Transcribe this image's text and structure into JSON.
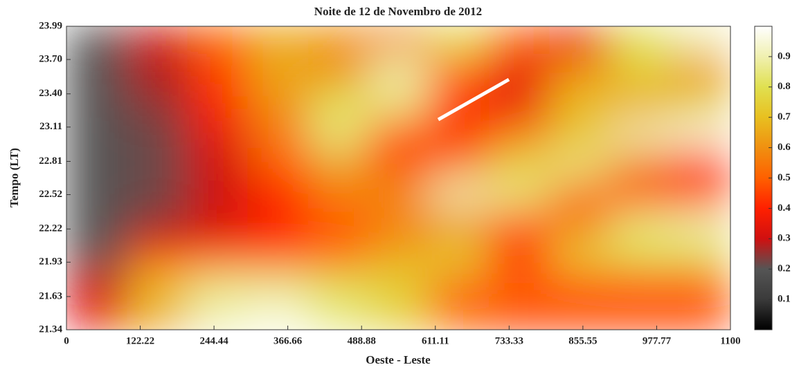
{
  "chart_data": {
    "type": "heatmap",
    "title": "Noite de 12 de Novembro de 2012",
    "x_label": "Oeste - Leste",
    "y_label": "Tempo (LT)",
    "x": [
      50,
      150,
      250,
      350,
      450,
      550,
      650,
      750,
      850,
      950,
      1050
    ],
    "y": [
      21.47,
      21.74,
      22.0,
      22.27,
      22.53,
      22.8,
      23.06,
      23.33,
      23.59,
      23.86
    ],
    "z": [
      [
        0.35,
        0.65,
        0.9,
        0.95,
        0.85,
        0.75,
        0.5,
        0.45,
        0.45,
        0.45,
        0.45
      ],
      [
        0.3,
        0.7,
        0.85,
        0.85,
        0.8,
        0.75,
        0.55,
        0.5,
        0.5,
        0.5,
        0.5
      ],
      [
        0.2,
        0.45,
        0.45,
        0.45,
        0.5,
        0.65,
        0.75,
        0.4,
        0.75,
        0.8,
        0.8
      ],
      [
        0.2,
        0.25,
        0.3,
        0.4,
        0.5,
        0.55,
        0.6,
        0.5,
        0.55,
        0.85,
        0.9
      ],
      [
        0.2,
        0.22,
        0.3,
        0.4,
        0.55,
        0.6,
        0.9,
        0.85,
        0.55,
        0.45,
        0.45
      ],
      [
        0.2,
        0.22,
        0.3,
        0.5,
        0.65,
        0.45,
        0.55,
        0.75,
        0.85,
        0.6,
        0.45
      ],
      [
        0.2,
        0.22,
        0.35,
        0.55,
        0.85,
        0.5,
        0.4,
        0.55,
        0.7,
        0.9,
        0.95
      ],
      [
        0.2,
        0.25,
        0.4,
        0.6,
        0.8,
        0.85,
        0.45,
        0.35,
        0.7,
        0.65,
        0.75
      ],
      [
        0.2,
        0.28,
        0.45,
        0.65,
        0.6,
        0.9,
        0.5,
        0.35,
        0.6,
        0.75,
        0.6
      ],
      [
        0.2,
        0.3,
        0.5,
        0.65,
        0.6,
        0.6,
        0.8,
        0.5,
        0.35,
        0.8,
        0.9
      ]
    ],
    "xlim": [
      0,
      1100
    ],
    "xticks": [
      0,
      122.22,
      244.44,
      366.66,
      488.88,
      611.11,
      733.33,
      855.55,
      977.77,
      1100
    ],
    "ylim": [
      21.34,
      23.99
    ],
    "yticks": [
      21.34,
      21.63,
      21.93,
      22.22,
      22.52,
      22.81,
      23.11,
      {
        "value": 23.4,
        "label": "23.40"
      },
      {
        "value": 23.7,
        "label": "23.70"
      },
      23.99
    ],
    "clim": [
      0,
      1
    ],
    "cticks": [
      0.1,
      0.2,
      0.3,
      0.4,
      0.5,
      0.6,
      0.7,
      0.8,
      0.9
    ],
    "colormap": [
      "#000000",
      "#3a3a3a",
      "#555555",
      "#d01010",
      "#ff2000",
      "#ff6000",
      "#f09010",
      "#e8c020",
      "#e0e050",
      "#f0f0b0",
      "#ffffff"
    ]
  }
}
